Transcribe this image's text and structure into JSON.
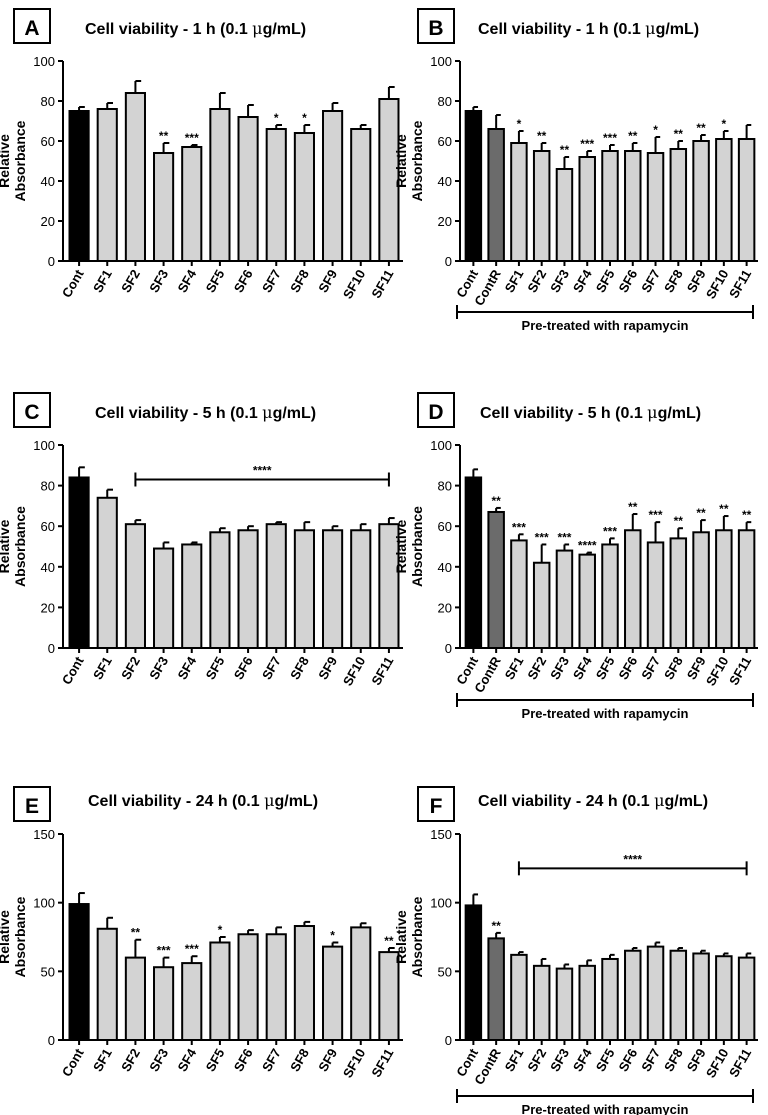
{
  "figure": {
    "ylabel": [
      "Relative",
      "Absorbance"
    ],
    "bracket_label": "Pre-treated with rapamycin",
    "mu": "μ"
  },
  "chart_data": [
    {
      "panel": "A",
      "type": "bar",
      "title_main": "Cell viability - 1 h (0.1 ",
      "title_unit": "g/mL)",
      "ylabel": "Relative Absorbance",
      "ylim": [
        0,
        100
      ],
      "yticks": [
        "0",
        "20",
        "40",
        "60",
        "80",
        "100"
      ],
      "categories": [
        "Cont",
        "SF1",
        "SF2",
        "SF3",
        "SF4",
        "SF5",
        "SF6",
        "SF7",
        "SF8",
        "SF9",
        "SF10",
        "SF11"
      ],
      "values": [
        75,
        76,
        84,
        54,
        57,
        76,
        72,
        66,
        64,
        75,
        66,
        81
      ],
      "errors": [
        2,
        3,
        6,
        5,
        1,
        8,
        6,
        2,
        4,
        4,
        2,
        6
      ],
      "bar_colors": [
        "#000000",
        "#d3d3d3",
        "#d3d3d3",
        "#d3d3d3",
        "#d3d3d3",
        "#d3d3d3",
        "#d3d3d3",
        "#d3d3d3",
        "#d3d3d3",
        "#d3d3d3",
        "#d3d3d3",
        "#d3d3d3"
      ],
      "significance": [
        "",
        "",
        "",
        "**",
        "***",
        "",
        "",
        "*",
        "*",
        "",
        "",
        ""
      ],
      "group_bracket": null,
      "pretreated_bracket": false
    },
    {
      "panel": "B",
      "type": "bar",
      "title_main": "Cell viability  - 1 h  (0.1 ",
      "title_unit": "g/mL)",
      "ylabel": "Relative Absorbance",
      "ylim": [
        0,
        100
      ],
      "yticks": [
        "0",
        "20",
        "40",
        "60",
        "80",
        "100"
      ],
      "categories": [
        "Cont",
        "ContR",
        "SF1",
        "SF2",
        "SF3",
        "SF4",
        "SF5",
        "SF6",
        "SF7",
        "SF8",
        "SF9",
        "SF10",
        "SF11"
      ],
      "values": [
        75,
        66,
        59,
        55,
        46,
        52,
        55,
        55,
        54,
        56,
        60,
        61,
        61
      ],
      "errors": [
        2,
        7,
        6,
        4,
        6,
        3,
        3,
        4,
        8,
        4,
        3,
        4,
        7
      ],
      "bar_colors": [
        "#000000",
        "#6b6b6b",
        "#d3d3d3",
        "#d3d3d3",
        "#d3d3d3",
        "#d3d3d3",
        "#d3d3d3",
        "#d3d3d3",
        "#d3d3d3",
        "#d3d3d3",
        "#d3d3d3",
        "#d3d3d3",
        "#d3d3d3"
      ],
      "significance": [
        "",
        "",
        "*",
        "**",
        "**",
        "***",
        "***",
        "**",
        "*",
        "**",
        "**",
        "*",
        ""
      ],
      "group_bracket": null,
      "pretreated_bracket": true
    },
    {
      "panel": "C",
      "type": "bar",
      "title_main": "Cell viability - 5 h (0.1 ",
      "title_unit": "g/mL)",
      "ylabel": "Relative Absorbance",
      "ylim": [
        0,
        100
      ],
      "yticks": [
        "0",
        "20",
        "40",
        "60",
        "80",
        "100"
      ],
      "categories": [
        "Cont",
        "SF1",
        "SF2",
        "SF3",
        "SF4",
        "SF5",
        "SF6",
        "SF7",
        "SF8",
        "SF9",
        "SF10",
        "SF11"
      ],
      "values": [
        84,
        74,
        61,
        49,
        51,
        57,
        58,
        61,
        58,
        58,
        58,
        61
      ],
      "errors": [
        5,
        4,
        2,
        3,
        1,
        2,
        2,
        1,
        4,
        2,
        3,
        3
      ],
      "bar_colors": [
        "#000000",
        "#d3d3d3",
        "#d3d3d3",
        "#d3d3d3",
        "#d3d3d3",
        "#d3d3d3",
        "#d3d3d3",
        "#d3d3d3",
        "#d3d3d3",
        "#d3d3d3",
        "#d3d3d3",
        "#d3d3d3"
      ],
      "significance": [
        "",
        "",
        "",
        "",
        "",
        "",
        "",
        "",
        "",
        "",
        "",
        ""
      ],
      "group_bracket": {
        "from": 2,
        "to": 11,
        "y": 83,
        "label": "****"
      },
      "pretreated_bracket": false
    },
    {
      "panel": "D",
      "type": "bar",
      "title_main": "Cell viability - 5 h (0.1 ",
      "title_unit": "g/mL)",
      "ylabel": "Relative Absorbance",
      "ylim": [
        0,
        100
      ],
      "yticks": [
        "0",
        "20",
        "40",
        "60",
        "80",
        "100"
      ],
      "categories": [
        "Cont",
        "ContR",
        "SF1",
        "SF2",
        "SF3",
        "SF4",
        "SF5",
        "SF6",
        "SF7",
        "SF8",
        "SF9",
        "SF10",
        "SF11"
      ],
      "values": [
        84,
        67,
        53,
        42,
        48,
        46,
        51,
        58,
        52,
        54,
        57,
        58,
        58
      ],
      "errors": [
        4,
        2,
        3,
        9,
        3,
        1,
        3,
        8,
        10,
        5,
        6,
        7,
        4
      ],
      "bar_colors": [
        "#000000",
        "#6b6b6b",
        "#d3d3d3",
        "#d3d3d3",
        "#d3d3d3",
        "#d3d3d3",
        "#d3d3d3",
        "#d3d3d3",
        "#d3d3d3",
        "#d3d3d3",
        "#d3d3d3",
        "#d3d3d3",
        "#d3d3d3"
      ],
      "significance": [
        "",
        "**",
        "***",
        "***",
        "***",
        "****",
        "***",
        "**",
        "***",
        "**",
        "**",
        "**",
        "**"
      ],
      "group_bracket": null,
      "pretreated_bracket": true
    },
    {
      "panel": "E",
      "type": "bar",
      "title_main": "Cell viability - 24 h (0.1 ",
      "title_unit": "g/mL)",
      "ylabel": "Relative Absorbance",
      "ylim": [
        0,
        150
      ],
      "yticks": [
        "0",
        "50",
        "100",
        "150"
      ],
      "categories": [
        "Cont",
        "SF1",
        "SF2",
        "SF3",
        "SF4",
        "SF5",
        "SF6",
        "SF7",
        "SF8",
        "SF9",
        "SF10",
        "SF11"
      ],
      "values": [
        99,
        81,
        60,
        53,
        56,
        71,
        77,
        77,
        83,
        68,
        82,
        64
      ],
      "errors": [
        8,
        8,
        13,
        7,
        5,
        4,
        3,
        5,
        3,
        3,
        3,
        3
      ],
      "bar_colors": [
        "#000000",
        "#d3d3d3",
        "#d3d3d3",
        "#d3d3d3",
        "#d3d3d3",
        "#d3d3d3",
        "#d3d3d3",
        "#d3d3d3",
        "#d3d3d3",
        "#d3d3d3",
        "#d3d3d3",
        "#d3d3d3"
      ],
      "significance": [
        "",
        "",
        "**",
        "***",
        "***",
        "*",
        "",
        "",
        "",
        "*",
        "",
        "**"
      ],
      "group_bracket": null,
      "pretreated_bracket": false
    },
    {
      "panel": "F",
      "type": "bar",
      "title_main": "Cell viability - 24 h (0.1 ",
      "title_unit": "g/mL)",
      "ylabel": "Relative Absorbance",
      "ylim": [
        0,
        150
      ],
      "yticks": [
        "0",
        "50",
        "100",
        "150"
      ],
      "categories": [
        "Cont",
        "ContR",
        "SF1",
        "SF2",
        "SF3",
        "SF4",
        "SF5",
        "SF6",
        "SF7",
        "SF8",
        "SF9",
        "SF10",
        "SF11"
      ],
      "values": [
        98,
        74,
        62,
        54,
        52,
        54,
        59,
        65,
        68,
        65,
        63,
        61,
        60
      ],
      "errors": [
        8,
        4,
        2,
        5,
        3,
        4,
        3,
        2,
        3,
        2,
        2,
        2,
        3
      ],
      "bar_colors": [
        "#000000",
        "#6b6b6b",
        "#d3d3d3",
        "#d3d3d3",
        "#d3d3d3",
        "#d3d3d3",
        "#d3d3d3",
        "#d3d3d3",
        "#d3d3d3",
        "#d3d3d3",
        "#d3d3d3",
        "#d3d3d3",
        "#d3d3d3"
      ],
      "significance": [
        "",
        "**",
        "",
        "",
        "",
        "",
        "",
        "",
        "",
        "",
        "",
        "",
        ""
      ],
      "group_bracket": {
        "from": 2,
        "to": 12,
        "y": 125,
        "label": "****"
      },
      "pretreated_bracket": true
    }
  ]
}
